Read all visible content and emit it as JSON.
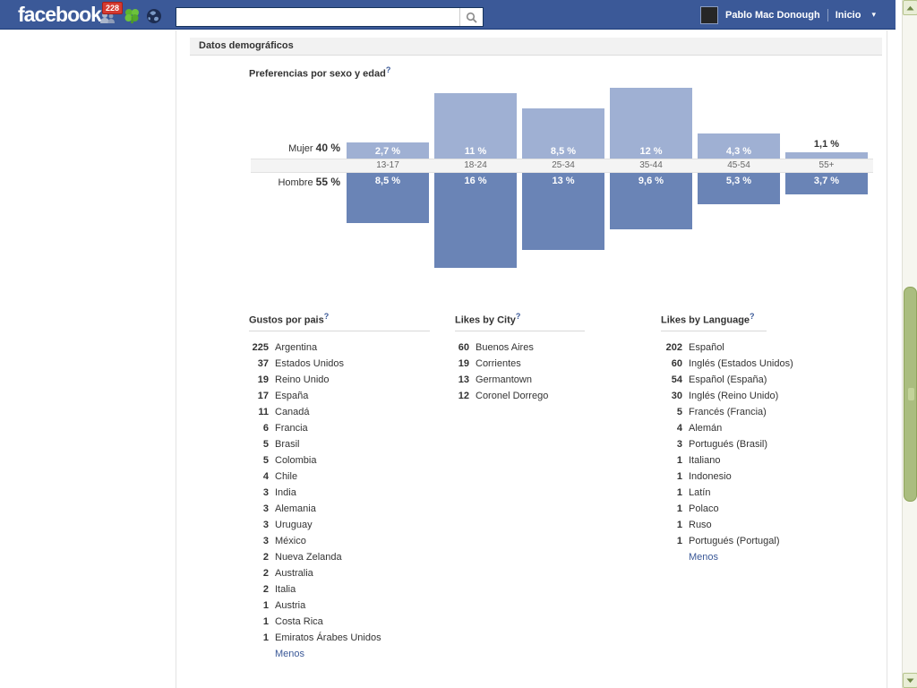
{
  "topbar": {
    "logo": "facebook",
    "notifications_badge": "228",
    "search_value": "",
    "user_name": "Pablo Mac Donough",
    "home_label": "Inicio"
  },
  "content": {
    "section_header": "Datos demográficos",
    "help_glyph": "?"
  },
  "chart_data": {
    "type": "bar",
    "title": "Preferencias por sexo y edad",
    "orientation": "diverging-vertical, female bars above age axis, male bars below",
    "categories": [
      "13-17",
      "18-24",
      "25-34",
      "35-44",
      "45-54",
      "55+"
    ],
    "series": [
      {
        "name": "Mujer",
        "total_label": "40 %",
        "color": "#9fb0d3",
        "values": [
          2.7,
          11,
          8.5,
          12,
          4.3,
          1.1
        ],
        "value_labels": [
          "2,7 %",
          "11 %",
          "8,5 %",
          "12 %",
          "4,3 %",
          "1,1 %"
        ]
      },
      {
        "name": "Hombre",
        "total_label": "55 %",
        "color": "#6a84b6",
        "values": [
          8.5,
          16,
          13,
          9.6,
          5.3,
          3.7
        ],
        "value_labels": [
          "8,5 %",
          "16 %",
          "13 %",
          "9,6 %",
          "5,3 %",
          "3,7 %"
        ]
      }
    ]
  },
  "lists": [
    {
      "title": "Gustos por pais",
      "items": [
        {
          "count": "225",
          "label": "Argentina"
        },
        {
          "count": "37",
          "label": "Estados Unidos"
        },
        {
          "count": "19",
          "label": "Reino Unido"
        },
        {
          "count": "17",
          "label": "España"
        },
        {
          "count": "11",
          "label": "Canadá"
        },
        {
          "count": "6",
          "label": "Francia"
        },
        {
          "count": "5",
          "label": "Brasil"
        },
        {
          "count": "5",
          "label": "Colombia"
        },
        {
          "count": "4",
          "label": "Chile"
        },
        {
          "count": "3",
          "label": "India"
        },
        {
          "count": "3",
          "label": "Alemania"
        },
        {
          "count": "3",
          "label": "Uruguay"
        },
        {
          "count": "3",
          "label": "México"
        },
        {
          "count": "2",
          "label": "Nueva Zelanda"
        },
        {
          "count": "2",
          "label": "Australia"
        },
        {
          "count": "2",
          "label": "Italia"
        },
        {
          "count": "1",
          "label": "Austria"
        },
        {
          "count": "1",
          "label": "Costa Rica"
        },
        {
          "count": "1",
          "label": "Emiratos Árabes Unidos"
        }
      ],
      "more_label": "Menos"
    },
    {
      "title": "Likes by City",
      "items": [
        {
          "count": "60",
          "label": "Buenos Aires"
        },
        {
          "count": "19",
          "label": "Corrientes"
        },
        {
          "count": "13",
          "label": "Germantown"
        },
        {
          "count": "12",
          "label": "Coronel Dorrego"
        }
      ]
    },
    {
      "title": "Likes by Language",
      "items": [
        {
          "count": "202",
          "label": "Español"
        },
        {
          "count": "60",
          "label": "Inglés (Estados Unidos)"
        },
        {
          "count": "54",
          "label": "Español (España)"
        },
        {
          "count": "30",
          "label": "Inglés (Reino Unido)"
        },
        {
          "count": "5",
          "label": "Francés (Francia)"
        },
        {
          "count": "4",
          "label": "Alemán"
        },
        {
          "count": "3",
          "label": "Portugués (Brasil)"
        },
        {
          "count": "1",
          "label": "Italiano"
        },
        {
          "count": "1",
          "label": "Indonesio"
        },
        {
          "count": "1",
          "label": "Latín"
        },
        {
          "count": "1",
          "label": "Polaco"
        },
        {
          "count": "1",
          "label": "Ruso"
        },
        {
          "count": "1",
          "label": "Portugués (Portugal)"
        }
      ],
      "more_label": "Menos"
    }
  ]
}
